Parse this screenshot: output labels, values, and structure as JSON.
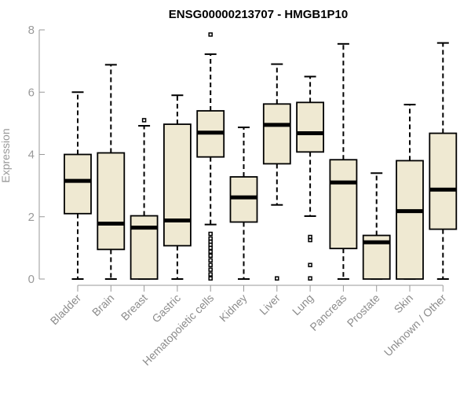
{
  "chart_data": {
    "type": "boxplot",
    "title": "ENSG00000213707 - HMGB1P10",
    "xlabel": "",
    "ylabel": "Expression",
    "ylim": [
      0,
      8
    ],
    "yticks": [
      0,
      2,
      4,
      6,
      8
    ],
    "categories": [
      "Bladder",
      "Brain",
      "Breast",
      "Gastric",
      "Hematopoietic cells",
      "Kidney",
      "Liver",
      "Lung",
      "Pancreas",
      "Prostate",
      "Skin",
      "Unknown / Other"
    ],
    "boxes": [
      {
        "category": "Bladder",
        "min": 0,
        "q1": 2.1,
        "median": 3.15,
        "q3": 4.0,
        "max": 6.0,
        "outliers": []
      },
      {
        "category": "Brain",
        "min": 0,
        "q1": 0.95,
        "median": 1.78,
        "q3": 4.05,
        "max": 6.88,
        "outliers": []
      },
      {
        "category": "Breast",
        "min": 0,
        "q1": 0,
        "median": 1.65,
        "q3": 2.03,
        "max": 4.92,
        "outliers": [
          5.1
        ]
      },
      {
        "category": "Gastric",
        "min": 0,
        "q1": 1.07,
        "median": 1.88,
        "q3": 4.97,
        "max": 5.9,
        "outliers": []
      },
      {
        "category": "Hematopoietic cells",
        "min": 1.75,
        "q1": 3.92,
        "median": 4.7,
        "q3": 5.4,
        "max": 7.22,
        "outliers": [
          7.85,
          1.45,
          1.3,
          1.2,
          1.1,
          1.0,
          0.88,
          0.75,
          0.6,
          0.45,
          0.3,
          0.15,
          0.02
        ]
      },
      {
        "category": "Kidney",
        "min": 0,
        "q1": 1.83,
        "median": 2.62,
        "q3": 3.28,
        "max": 4.87,
        "outliers": []
      },
      {
        "category": "Liver",
        "min": 2.38,
        "q1": 3.7,
        "median": 4.95,
        "q3": 5.62,
        "max": 6.9,
        "outliers": [
          0.02
        ]
      },
      {
        "category": "Lung",
        "min": 2.02,
        "q1": 4.08,
        "median": 4.68,
        "q3": 5.67,
        "max": 6.5,
        "outliers": [
          1.35,
          1.25,
          0.45,
          0.02
        ]
      },
      {
        "category": "Pancreas",
        "min": 0,
        "q1": 0.98,
        "median": 3.1,
        "q3": 3.83,
        "max": 7.55,
        "outliers": []
      },
      {
        "category": "Prostate",
        "min": 0,
        "q1": 0,
        "median": 1.18,
        "q3": 1.4,
        "max": 3.4,
        "outliers": []
      },
      {
        "category": "Skin",
        "min": 0,
        "q1": 0,
        "median": 2.18,
        "q3": 3.8,
        "max": 5.6,
        "outliers": []
      },
      {
        "category": "Unknown / Other",
        "min": 0,
        "q1": 1.6,
        "median": 2.87,
        "q3": 4.68,
        "max": 7.58,
        "outliers": []
      }
    ]
  }
}
